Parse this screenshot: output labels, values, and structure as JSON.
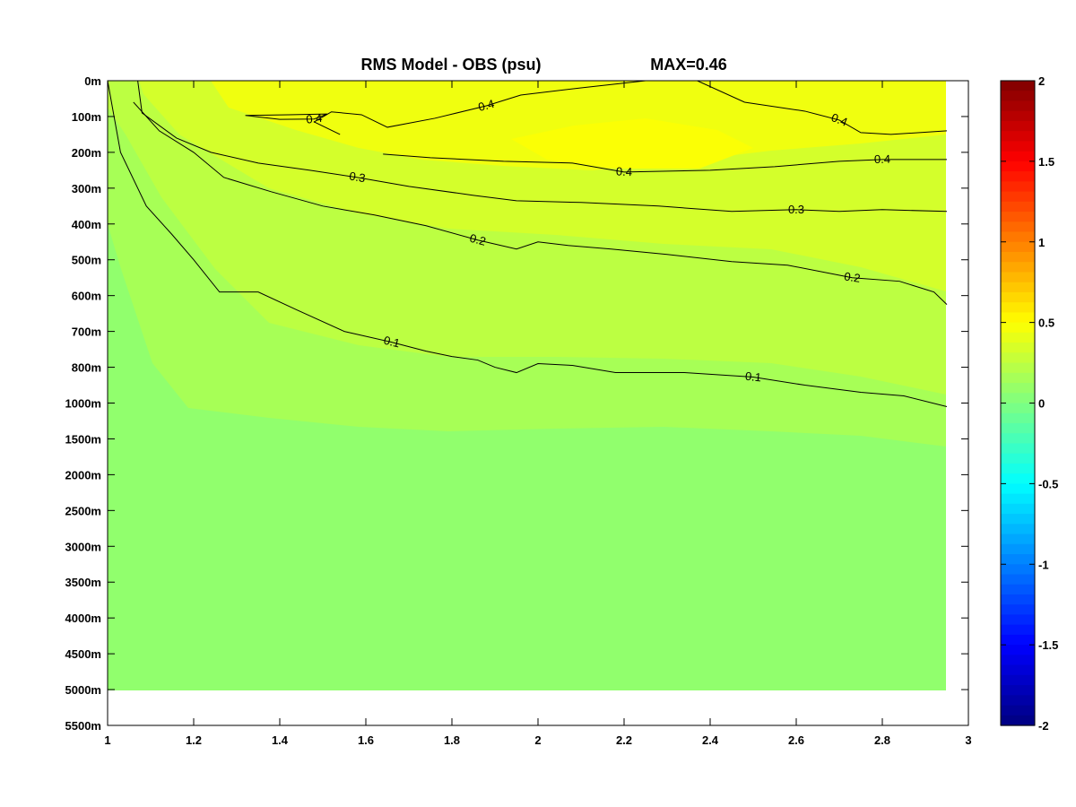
{
  "chart_data": {
    "type": "contourf",
    "title": "RMS Model - OBS (psu)",
    "max_label": "MAX=0.46",
    "xlabel": "",
    "ylabel": "",
    "xlim": [
      1,
      3
    ],
    "x_ticks": [
      1,
      1.2,
      1.4,
      1.6,
      1.8,
      2,
      2.2,
      2.4,
      2.6,
      2.8,
      3
    ],
    "x_tick_labels": [
      "1",
      "1.2",
      "1.4",
      "1.6",
      "1.8",
      "2",
      "2.2",
      "2.4",
      "2.6",
      "2.8",
      "3"
    ],
    "y_tick_labels": [
      "0m",
      "100m",
      "200m",
      "300m",
      "400m",
      "500m",
      "600m",
      "700m",
      "800m",
      "1000m",
      "1500m",
      "2000m",
      "2500m",
      "3000m",
      "3500m",
      "4000m",
      "4500m",
      "5000m",
      "5500m"
    ],
    "data_x_max": 2.95,
    "data_bottom_depth": "5000m",
    "colorbar": {
      "range": [
        -2,
        2
      ],
      "ticks": [
        2,
        1.5,
        1,
        0.5,
        0,
        -0.5,
        -1,
        -1.5,
        -2
      ],
      "tick_labels": [
        "2",
        "1.5",
        "1",
        "0.5",
        "0",
        "-0.5",
        "-1",
        "-1.5",
        "-2"
      ],
      "colormap": "jet"
    },
    "fill_levels": [
      {
        "range": "0-0.1",
        "color": "#91ff6d"
      },
      {
        "range": "0.1-0.2",
        "color": "#a7ff56"
      },
      {
        "range": "0.2-0.3",
        "color": "#bcff42"
      },
      {
        "range": "0.3-0.4",
        "color": "#d4ff2b"
      },
      {
        "range": "0.4-0.5",
        "color": "#f0ff0f"
      }
    ],
    "contours": [
      {
        "level": 0.1,
        "label": "0.1",
        "points": [
          [
            1.0,
            "0m"
          ],
          [
            1.03,
            "200m"
          ],
          [
            1.09,
            "350m"
          ],
          [
            1.15,
            "430m"
          ],
          [
            1.2,
            "500m"
          ],
          [
            1.26,
            "590m"
          ],
          [
            1.35,
            "590m"
          ],
          [
            1.44,
            "640m"
          ],
          [
            1.55,
            "700m"
          ],
          [
            1.66,
            "730m"
          ],
          [
            1.74,
            "755m"
          ],
          [
            1.8,
            "770m"
          ],
          [
            1.86,
            "780m"
          ],
          [
            1.9,
            "800m"
          ],
          [
            1.95,
            "830m"
          ],
          [
            2.0,
            "790m"
          ],
          [
            2.08,
            "795m"
          ],
          [
            2.18,
            "830m"
          ],
          [
            2.34,
            "830m"
          ],
          [
            2.5,
            "855m"
          ],
          [
            2.62,
            "900m"
          ],
          [
            2.75,
            "940m"
          ],
          [
            2.85,
            "960m"
          ],
          [
            2.95,
            "1050m"
          ]
        ]
      },
      {
        "level": 0.2,
        "label": "0.2",
        "points": [
          [
            1.06,
            "60m"
          ],
          [
            1.12,
            "140m"
          ],
          [
            1.2,
            "200m"
          ],
          [
            1.27,
            "270m"
          ],
          [
            1.38,
            "310m"
          ],
          [
            1.5,
            "350m"
          ],
          [
            1.62,
            "375m"
          ],
          [
            1.74,
            "405m"
          ],
          [
            1.86,
            "445m"
          ],
          [
            1.95,
            "470m"
          ],
          [
            2.0,
            "450m"
          ],
          [
            2.07,
            "460m"
          ],
          [
            2.17,
            "470m"
          ],
          [
            2.3,
            "485m"
          ],
          [
            2.45,
            "505m"
          ],
          [
            2.58,
            "515m"
          ],
          [
            2.73,
            "550m"
          ],
          [
            2.84,
            "560m"
          ],
          [
            2.92,
            "590m"
          ],
          [
            2.95,
            "625m"
          ]
        ]
      },
      {
        "level": 0.3,
        "label": "0.3",
        "points": [
          [
            1.07,
            "0m"
          ],
          [
            1.08,
            "90m"
          ],
          [
            1.16,
            "160m"
          ],
          [
            1.24,
            "200m"
          ],
          [
            1.35,
            "230m"
          ],
          [
            1.47,
            "250m"
          ],
          [
            1.58,
            "270m"
          ],
          [
            1.7,
            "295m"
          ],
          [
            1.85,
            "320m"
          ],
          [
            1.95,
            "335m"
          ],
          [
            2.1,
            "340m"
          ],
          [
            2.28,
            "350m"
          ],
          [
            2.45,
            "365m"
          ],
          [
            2.6,
            "360m"
          ],
          [
            2.7,
            "365m"
          ],
          [
            2.8,
            "360m"
          ],
          [
            2.95,
            "365m"
          ]
        ]
      },
      {
        "level": 0.4,
        "label": "0.4",
        "points": [
          [
            1.64,
            "205m"
          ],
          [
            1.75,
            "215m"
          ],
          [
            1.92,
            "225m"
          ],
          [
            2.08,
            "230m"
          ],
          [
            2.2,
            "255m"
          ],
          [
            2.4,
            "250m"
          ],
          [
            2.55,
            "240m"
          ],
          [
            2.7,
            "225m"
          ],
          [
            2.8,
            "220m"
          ],
          [
            2.95,
            "220m"
          ]
        ]
      },
      {
        "level": 0.4,
        "label": "0.4",
        "points": [
          [
            1.54,
            "150m"
          ],
          [
            1.48,
            "115m"
          ],
          [
            1.52,
            "87m"
          ],
          [
            1.59,
            "95m"
          ],
          [
            1.65,
            "130m"
          ],
          [
            1.76,
            "105m"
          ],
          [
            1.88,
            "70m"
          ],
          [
            1.96,
            "40m"
          ],
          [
            2.1,
            "20m"
          ],
          [
            2.25,
            "0m"
          ],
          [
            2.37,
            "0m"
          ],
          [
            2.48,
            "60m"
          ],
          [
            2.62,
            "85m"
          ],
          [
            2.7,
            "110m"
          ],
          [
            2.75,
            "145m"
          ],
          [
            2.82,
            "150m"
          ],
          [
            2.95,
            "140m"
          ]
        ]
      },
      {
        "level": 0.4,
        "label": "0.4",
        "points": [
          [
            1.32,
            "97m"
          ],
          [
            1.42,
            "95m"
          ],
          [
            1.51,
            "93m"
          ],
          [
            1.48,
            "107m"
          ],
          [
            1.4,
            "108m"
          ],
          [
            1.32,
            "97m"
          ]
        ]
      }
    ]
  }
}
